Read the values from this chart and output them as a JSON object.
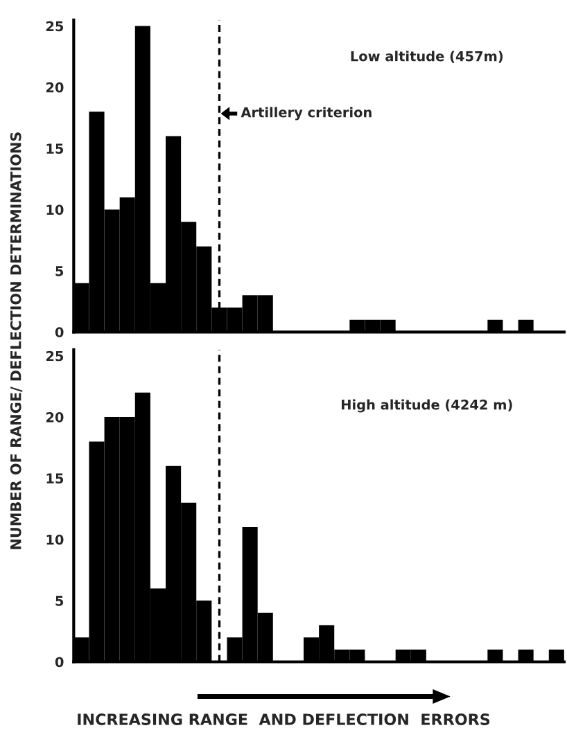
{
  "chart_data": [
    {
      "type": "bar",
      "ylabel": "NUMBER OF RANGE/ DEFLECTION DETERMINATIONS",
      "categories": [
        null,
        null,
        null,
        null,
        null,
        null,
        null,
        null,
        null,
        null,
        null,
        null,
        null,
        null,
        null,
        null,
        null,
        null,
        null,
        null,
        null,
        null,
        null,
        null,
        null,
        null,
        null,
        null,
        null,
        null,
        null,
        null
      ],
      "values": [
        4,
        18,
        10,
        11,
        25,
        4,
        16,
        9,
        7,
        2,
        2,
        3,
        3,
        0,
        0,
        0,
        0,
        0,
        1,
        1,
        1,
        0,
        0,
        0,
        0,
        0,
        0,
        1,
        0,
        1,
        0,
        0
      ],
      "color": "#000000",
      "ylim": [
        0,
        25.5
      ],
      "yticks": [
        0,
        5,
        10,
        15,
        20,
        25
      ],
      "tick_labels": "y",
      "grid": false,
      "annotations": [
        "Low altitude (457m)",
        "Artillery criterion"
      ]
    },
    {
      "type": "bar",
      "xlabel": "INCREASING RANGE  AND DEFLECTION  ERRORS",
      "categories": [
        null,
        null,
        null,
        null,
        null,
        null,
        null,
        null,
        null,
        null,
        null,
        null,
        null,
        null,
        null,
        null,
        null,
        null,
        null,
        null,
        null,
        null,
        null,
        null,
        null,
        null,
        null,
        null,
        null,
        null,
        null,
        null
      ],
      "values": [
        2,
        18,
        20,
        20,
        22,
        6,
        16,
        13,
        5,
        0,
        2,
        11,
        4,
        0,
        0,
        2,
        3,
        1,
        1,
        0,
        0,
        1,
        1,
        0,
        0,
        0,
        0,
        1,
        0,
        1,
        0,
        1
      ],
      "color": "#000000",
      "ylim": [
        0,
        25.5
      ],
      "yticks": [
        0,
        5,
        10,
        15,
        20,
        25
      ],
      "tick_labels": "y",
      "grid": false,
      "annotations": [
        "High altitude (4242 m)"
      ]
    }
  ]
}
